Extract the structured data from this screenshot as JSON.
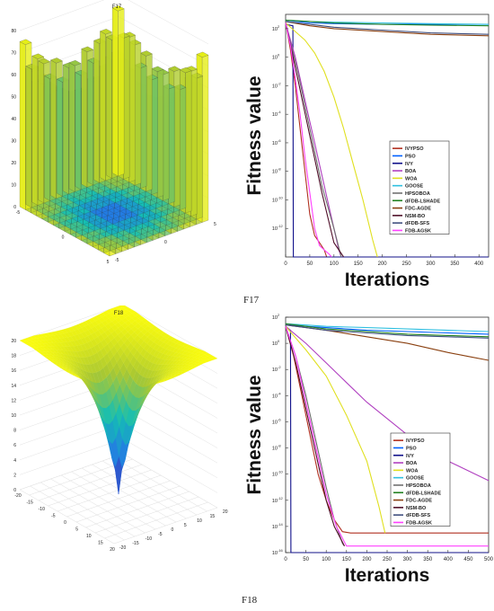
{
  "captions": {
    "f17": "F17",
    "f18": "F18"
  },
  "colors": {
    "IVYPSO": "#b03020",
    "PSO": "#0060ff",
    "IVY": "#10108a",
    "BOA": "#b040c0",
    "WOA": "#e0e020",
    "GOOSE": "#30c0e0",
    "HPSOBOA": "#707070",
    "dFDB-LSHADE": "#208020",
    "FDC-AGDE": "#8a4010",
    "NSM-BO": "#50102a",
    "dFDB-SFS": "#405080",
    "FDB-AGSK": "#ff40ff"
  },
  "chart_data": [
    {
      "type": "surface",
      "title": "F17",
      "zticks": [
        "0",
        "10",
        "20",
        "30",
        "40",
        "50",
        "60",
        "70",
        "80"
      ],
      "xticks": [
        "-5",
        "0",
        "5"
      ],
      "yticks": [
        "-5",
        "0",
        "5"
      ]
    },
    {
      "type": "line",
      "title": "",
      "xlabel": "Iterations",
      "ylabel": "Fitness value",
      "yscale": "log",
      "xlim": [
        0,
        420
      ],
      "ylim_exp": [
        -14,
        3
      ],
      "xticks": [
        "0",
        "50",
        "100",
        "150",
        "200",
        "250",
        "300",
        "350",
        "400"
      ],
      "yticks": [
        {
          "base": "10",
          "exp": "2"
        },
        {
          "base": "10",
          "exp": "0"
        },
        {
          "base": "10",
          "exp": "-2"
        },
        {
          "base": "10",
          "exp": "-4"
        },
        {
          "base": "10",
          "exp": "-6"
        },
        {
          "base": "10",
          "exp": "-8"
        },
        {
          "base": "10",
          "exp": "-10"
        },
        {
          "base": "10",
          "exp": "-12"
        }
      ],
      "legend_position": "center-right",
      "series": [
        {
          "name": "IVYPSO",
          "x": [
            0,
            5,
            10,
            20,
            30,
            40,
            50,
            60,
            70,
            80,
            85
          ],
          "log10y": [
            2.4,
            1.5,
            0.5,
            -2,
            -5,
            -8,
            -11,
            -12.5,
            -13,
            -13.5,
            -14
          ]
        },
        {
          "name": "PSO",
          "x": [
            0,
            50,
            100,
            200,
            300,
            420
          ],
          "log10y": [
            2.6,
            2.4,
            2.35,
            2.3,
            2.3,
            2.3
          ]
        },
        {
          "name": "IVY",
          "x": [
            0,
            15,
            16,
            20,
            420
          ],
          "log10y": [
            2.3,
            2.2,
            -14,
            -14,
            -14
          ]
        },
        {
          "name": "BOA",
          "x": [
            0,
            20,
            40,
            60,
            80,
            100,
            110,
            115
          ],
          "log10y": [
            2.4,
            0,
            -3,
            -6,
            -9,
            -12,
            -13.5,
            -14
          ]
        },
        {
          "name": "WOA",
          "x": [
            0,
            20,
            40,
            60,
            80,
            100,
            120,
            140,
            160,
            180,
            190
          ],
          "log10y": [
            2.4,
            1.8,
            1.2,
            0.3,
            -1,
            -2.8,
            -5,
            -7.5,
            -10,
            -12.8,
            -14
          ]
        },
        {
          "name": "GOOSE",
          "x": [
            0,
            50,
            100,
            200,
            300,
            420
          ],
          "log10y": [
            2.6,
            2.5,
            2.45,
            2.4,
            2.35,
            2.3
          ]
        },
        {
          "name": "HPSOBOA",
          "x": [
            0,
            25,
            50,
            75,
            100,
            115
          ],
          "log10y": [
            2.4,
            -1,
            -5,
            -9,
            -12,
            -14
          ]
        },
        {
          "name": "dFDB-LSHADE",
          "x": [
            0,
            50,
            100,
            200,
            300,
            420
          ],
          "log10y": [
            2.6,
            2.5,
            2.4,
            2.3,
            2.25,
            2.2
          ]
        },
        {
          "name": "FDC-AGDE",
          "x": [
            0,
            50,
            100,
            200,
            300,
            420
          ],
          "log10y": [
            2.5,
            2.2,
            2.0,
            1.8,
            1.6,
            1.5
          ]
        },
        {
          "name": "NSM-BO",
          "x": [
            0,
            25,
            50,
            75,
            100,
            120
          ],
          "log10y": [
            2.4,
            -1.5,
            -5.5,
            -9.5,
            -13,
            -14
          ]
        },
        {
          "name": "dFDB-SFS",
          "x": [
            0,
            50,
            100,
            200,
            300,
            420
          ],
          "log10y": [
            2.5,
            2.3,
            2.1,
            1.9,
            1.7,
            1.6
          ]
        },
        {
          "name": "FDB-AGSK",
          "x": [
            0,
            10,
            20,
            30,
            40,
            50,
            60,
            70,
            80,
            90,
            95
          ],
          "log10y": [
            2.4,
            0.8,
            -1.5,
            -4,
            -7,
            -9.5,
            -12,
            -13.2,
            -13.5,
            -13.8,
            -14
          ]
        }
      ]
    },
    {
      "type": "surface",
      "title": "F18",
      "zticks": [
        "0",
        "2",
        "4",
        "6",
        "8",
        "10",
        "12",
        "14",
        "16",
        "18",
        "20"
      ],
      "xticks": [
        "-20",
        "-15",
        "-10",
        "-5",
        "0",
        "5",
        "10",
        "15",
        "20"
      ],
      "yticks": [
        "-20",
        "-15",
        "-10",
        "-5",
        "0",
        "5",
        "10",
        "15",
        "20"
      ]
    },
    {
      "type": "line",
      "title": "",
      "xlabel": "Iterations",
      "ylabel": "Fitness value",
      "yscale": "log",
      "xlim": [
        0,
        500
      ],
      "ylim_exp": [
        -16,
        2
      ],
      "xticks": [
        "0",
        "50",
        "100",
        "150",
        "200",
        "250",
        "300",
        "350",
        "400",
        "450",
        "500"
      ],
      "yticks": [
        {
          "base": "10",
          "exp": "2"
        },
        {
          "base": "10",
          "exp": "0"
        },
        {
          "base": "10",
          "exp": "-2"
        },
        {
          "base": "10",
          "exp": "-4"
        },
        {
          "base": "10",
          "exp": "-6"
        },
        {
          "base": "10",
          "exp": "-8"
        },
        {
          "base": "10",
          "exp": "-10"
        },
        {
          "base": "10",
          "exp": "-12"
        },
        {
          "base": "10",
          "exp": "-14"
        },
        {
          "base": "10",
          "exp": "-16"
        }
      ],
      "legend_position": "bottom-center",
      "series": [
        {
          "name": "IVYPSO",
          "x": [
            0,
            20,
            40,
            60,
            80,
            100,
            120,
            140,
            160,
            500
          ],
          "log10y": [
            1.3,
            -1,
            -4,
            -7,
            -10,
            -12,
            -13.5,
            -14.4,
            -14.5,
            -14.5
          ]
        },
        {
          "name": "PSO",
          "x": [
            0,
            50,
            100,
            200,
            300,
            400,
            500
          ],
          "log10y": [
            1.4,
            1.3,
            1.2,
            1.0,
            0.9,
            0.8,
            0.7
          ]
        },
        {
          "name": "IVY",
          "x": [
            0,
            12,
            13,
            500
          ],
          "log10y": [
            1.3,
            1.0,
            -16,
            -16
          ]
        },
        {
          "name": "BOA",
          "x": [
            0,
            50,
            100,
            150,
            200,
            300,
            400,
            500
          ],
          "log10y": [
            1.3,
            0,
            -1.5,
            -3,
            -4.5,
            -7,
            -9,
            -10.5
          ]
        },
        {
          "name": "WOA",
          "x": [
            0,
            50,
            100,
            150,
            200,
            230,
            245
          ],
          "log10y": [
            1.3,
            -0.5,
            -2.5,
            -5.5,
            -9,
            -12.5,
            -14.5
          ]
        },
        {
          "name": "GOOSE",
          "x": [
            0,
            50,
            100,
            200,
            300,
            400,
            500
          ],
          "log10y": [
            1.5,
            1.4,
            1.3,
            1.2,
            1.1,
            1.0,
            0.9
          ]
        },
        {
          "name": "HPSOBOA",
          "x": [
            0,
            25,
            50,
            75,
            100,
            120,
            140,
            145
          ],
          "log10y": [
            1.3,
            -1,
            -4,
            -7.5,
            -11,
            -13.5,
            -15.3,
            -15.5
          ]
        },
        {
          "name": "dFDB-LSHADE",
          "x": [
            0,
            50,
            100,
            200,
            300,
            400,
            500
          ],
          "log10y": [
            1.5,
            1.3,
            1.1,
            0.9,
            0.7,
            0.6,
            0.5
          ]
        },
        {
          "name": "FDC-AGDE",
          "x": [
            0,
            50,
            100,
            200,
            300,
            400,
            450,
            500
          ],
          "log10y": [
            1.4,
            1.2,
            1.0,
            0.5,
            0,
            -0.7,
            -1.0,
            -1.3
          ]
        },
        {
          "name": "NSM-BO",
          "x": [
            0,
            25,
            50,
            75,
            100,
            120,
            145
          ],
          "log10y": [
            1.3,
            -1.5,
            -5,
            -8.5,
            -12,
            -14,
            -15.5
          ]
        },
        {
          "name": "dFDB-SFS",
          "x": [
            0,
            50,
            100,
            200,
            300,
            400,
            500
          ],
          "log10y": [
            1.4,
            1.2,
            1.0,
            0.8,
            0.6,
            0.5,
            0.4
          ]
        },
        {
          "name": "FDB-AGSK",
          "x": [
            0,
            25,
            50,
            75,
            100,
            125,
            150,
            500
          ],
          "log10y": [
            1.3,
            -1,
            -4.5,
            -8,
            -11.5,
            -14,
            -15.5,
            -15.5
          ]
        }
      ]
    }
  ]
}
